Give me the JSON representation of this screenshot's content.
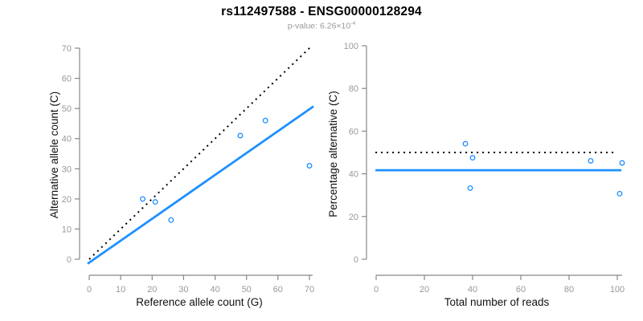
{
  "header": {
    "title": "rs112497588 - ENSG00000128294",
    "subtitle_prefix": "p-value: 6.26×10",
    "subtitle_exponent": "-4"
  },
  "colors": {
    "accent_blue": "#1E90FF",
    "dotted_black": "#000000",
    "axis": "#888888",
    "tick_label": "#999999",
    "subtitle_gray": "#999999"
  },
  "chart_data": [
    {
      "type": "scatter",
      "xlabel": "Reference allele count (G)",
      "ylabel": "Alternative allele count (C)",
      "xlim": [
        0,
        70
      ],
      "ylim": [
        0,
        70
      ],
      "xticks": [
        0,
        10,
        20,
        30,
        40,
        50,
        60,
        70
      ],
      "yticks": [
        0,
        10,
        20,
        30,
        40,
        50,
        60,
        70
      ],
      "grid": false,
      "point_color": "#1E90FF",
      "points": [
        [
          17,
          20
        ],
        [
          21,
          19
        ],
        [
          26,
          13
        ],
        [
          48,
          41
        ],
        [
          56,
          46
        ],
        [
          70,
          31
        ]
      ],
      "lines": [
        {
          "name": "identity-line",
          "style": "dotted",
          "color": "#000000",
          "from": [
            0,
            0
          ],
          "to": [
            70.9,
            70.9
          ]
        },
        {
          "name": "fit-line",
          "style": "solid",
          "color": "#1E90FF",
          "from": [
            -0.5,
            -1.5
          ],
          "to": [
            71.3,
            50.7
          ]
        }
      ]
    },
    {
      "type": "scatter",
      "xlabel": "Total number of reads",
      "ylabel": "Percentage alternative (C)",
      "xlim": [
        0,
        102
      ],
      "ylim": [
        0,
        100
      ],
      "xticks": [
        0,
        20,
        40,
        60,
        80,
        100
      ],
      "yticks": [
        0,
        20,
        40,
        60,
        80,
        100
      ],
      "grid": false,
      "point_color": "#1E90FF",
      "points": [
        [
          37,
          54.1
        ],
        [
          40,
          47.5
        ],
        [
          39,
          33.3
        ],
        [
          89,
          46.1
        ],
        [
          102,
          45.1
        ],
        [
          101,
          30.7
        ]
      ],
      "lines": [
        {
          "name": "fifty-percent-line",
          "style": "dotted",
          "color": "#000000",
          "from": [
            -0.3,
            50
          ],
          "to": [
            100,
            50
          ]
        },
        {
          "name": "mean-percentage-line",
          "style": "solid",
          "color": "#1E90FF",
          "from": [
            -0.3,
            41.7
          ],
          "to": [
            101.7,
            41.7
          ]
        }
      ]
    }
  ]
}
